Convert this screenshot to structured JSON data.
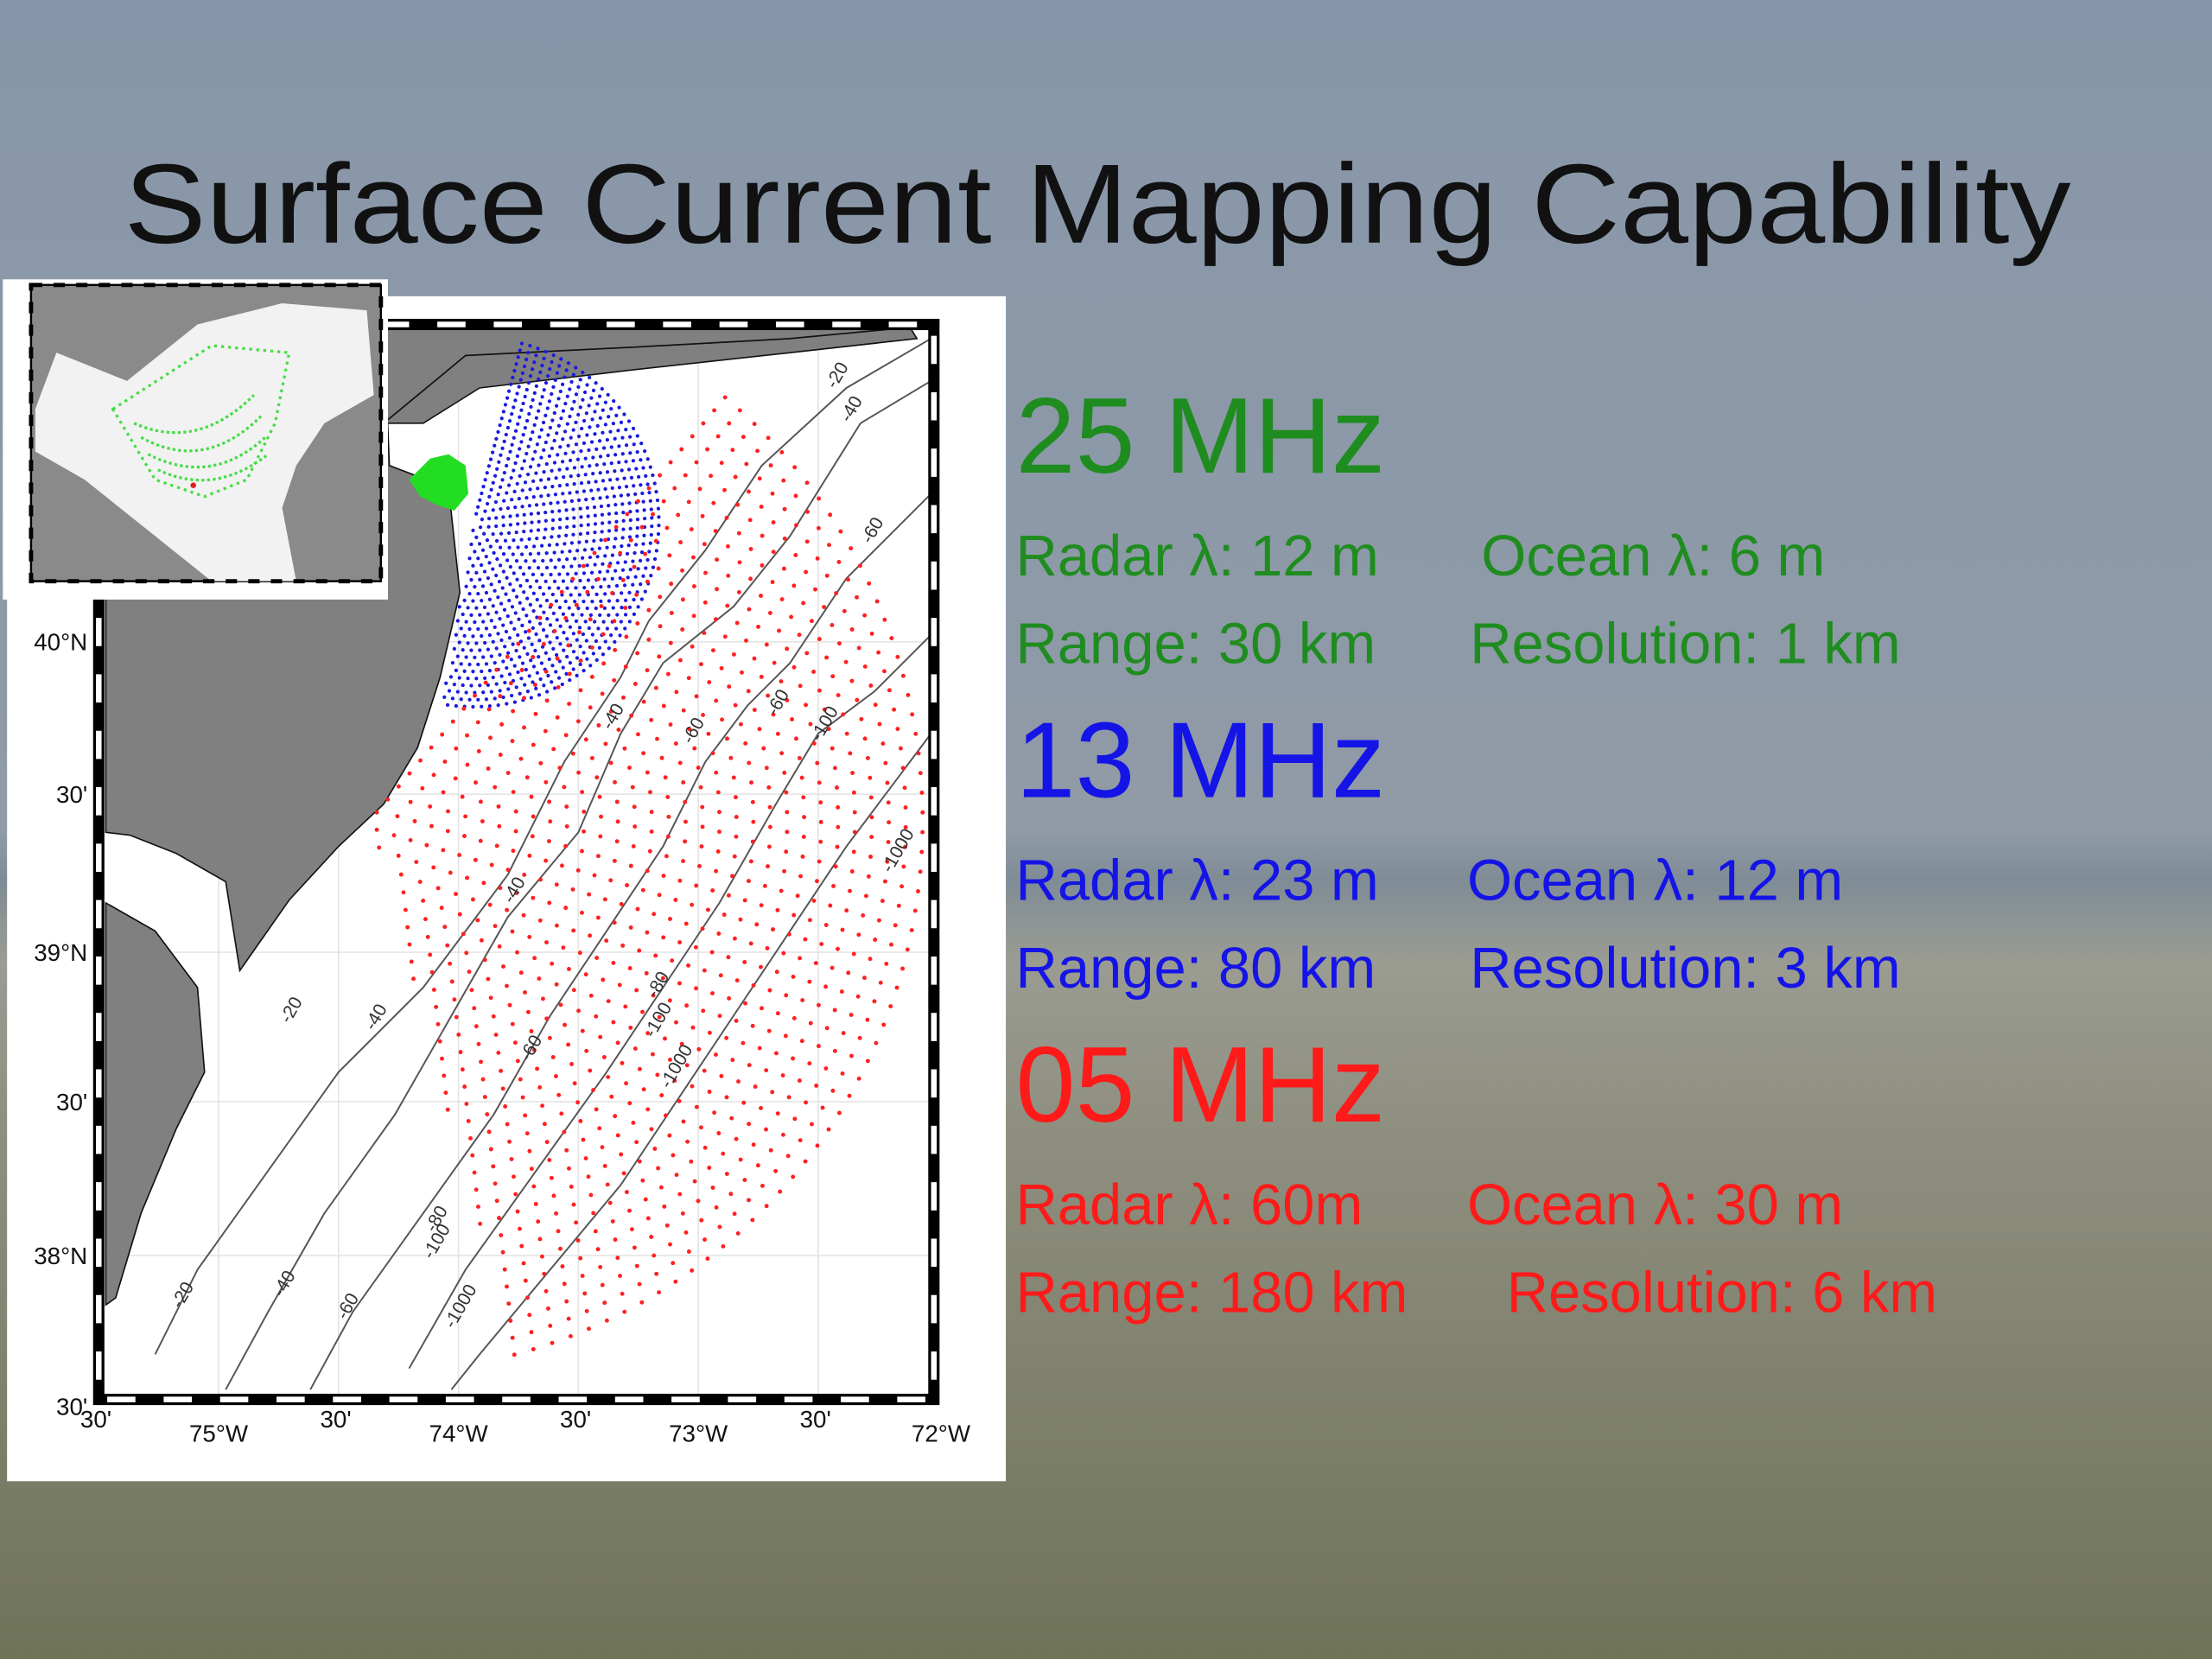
{
  "title": "Surface Current Mapping Capability",
  "bands": [
    {
      "frequency": "25 MHz",
      "color": "#1f8c1f",
      "lines": [
        [
          "Radar λ: 12 m",
          "Ocean λ: 6 m"
        ],
        [
          "Range: 30 km",
          "Resolution: 1 km"
        ]
      ]
    },
    {
      "frequency": "13 MHz",
      "color": "#1414e6",
      "lines": [
        [
          "Radar λ: 23 m",
          "Ocean λ: 12 m"
        ],
        [
          "Range: 80 km",
          "Resolution: 3 km"
        ]
      ]
    },
    {
      "frequency": "05 MHz",
      "color": "#ff1a1a",
      "lines": [
        [
          "Radar λ: 60m",
          "Ocean λ: 30 m"
        ],
        [
          "Range: 180 km",
          "Resolution: 6 km"
        ]
      ]
    }
  ],
  "map": {
    "y_axis_labels": [
      "40°N",
      "30'",
      "39°N",
      "30'",
      "38°N",
      "30'"
    ],
    "x_axis_labels": [
      "30'",
      "75°W",
      "30'",
      "74°W",
      "30'",
      "73°W",
      "30'",
      "72°W"
    ],
    "contour_labels": [
      "-20",
      "-40",
      "-60",
      "-60",
      "-40",
      "-60",
      "-100",
      "-1000",
      "-40",
      "-20",
      "-40",
      "-80",
      "-100",
      "-1000",
      "-60",
      "-80",
      "-100",
      "-20",
      "-40",
      "-60",
      "-1000"
    ]
  }
}
